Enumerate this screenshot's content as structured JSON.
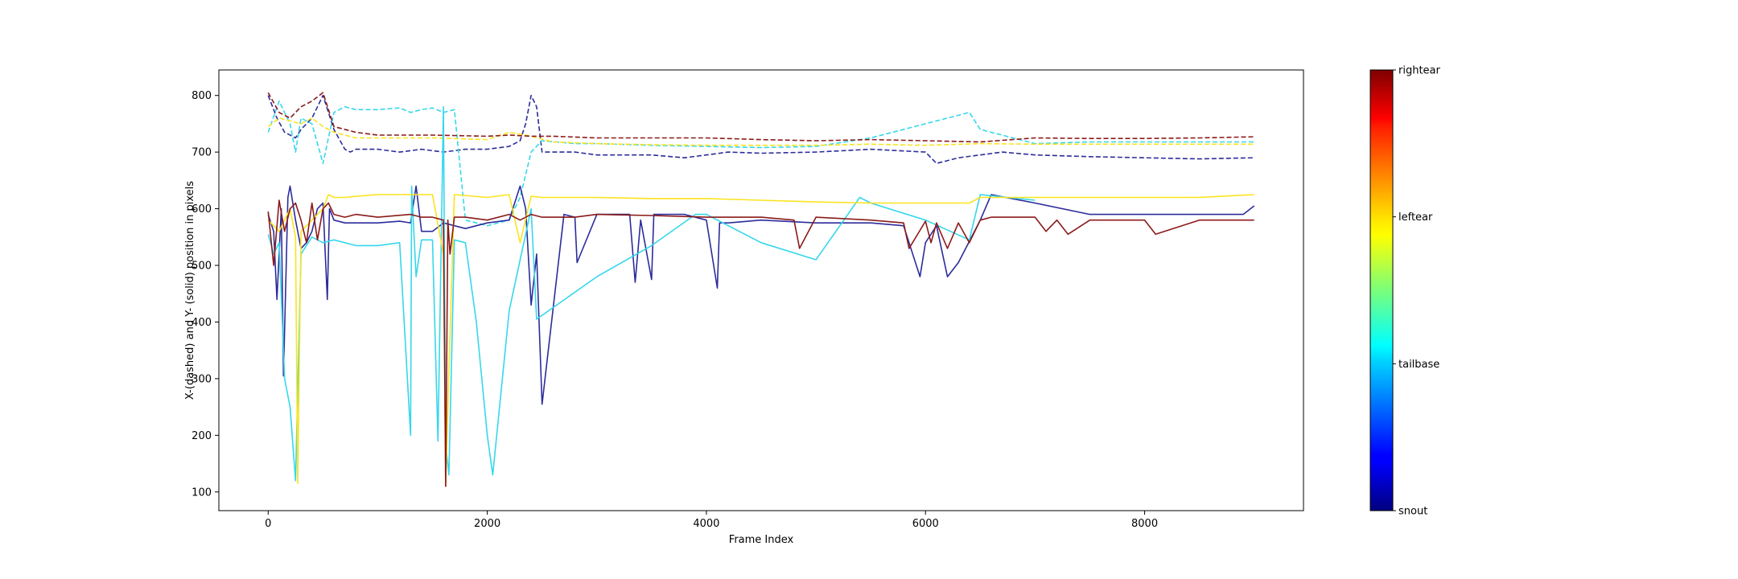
{
  "chart_data": {
    "type": "line",
    "title": "",
    "xlabel": "Frame Index",
    "ylabel": "X-(dashed) and Y- (solid) position in pixels",
    "xlim": [
      -450,
      9450
    ],
    "ylim": [
      67,
      845
    ],
    "xticks": [
      0,
      2000,
      4000,
      6000,
      8000
    ],
    "yticks": [
      100,
      200,
      300,
      400,
      500,
      600,
      700,
      800
    ],
    "grid": false,
    "legend": "none",
    "colorbar": {
      "labels": [
        "snout",
        "tailbase",
        "leftear",
        "rightear"
      ],
      "colormap": "jet"
    },
    "series": [
      {
        "color": "#2c2c9c",
        "dash": true,
        "x": [
          0,
          80,
          150,
          250,
          300,
          400,
          500,
          600,
          700,
          750,
          800,
          1000,
          1200,
          1400,
          1600,
          1800,
          2000,
          2200,
          2300,
          2350,
          2400,
          2450,
          2500,
          2800,
          3000,
          3200,
          3500,
          3800,
          4000,
          4200,
          4500,
          5000,
          5500,
          6000,
          6100,
          6300,
          6500,
          6700,
          7000,
          7500,
          8000,
          8500,
          9000
        ],
        "y": [
          800,
          760,
          735,
          725,
          740,
          760,
          800,
          740,
          705,
          700,
          705,
          705,
          700,
          705,
          700,
          705,
          705,
          710,
          720,
          750,
          800,
          780,
          700,
          700,
          695,
          695,
          695,
          690,
          695,
          700,
          698,
          700,
          705,
          700,
          680,
          690,
          695,
          700,
          695,
          692,
          690,
          688,
          690
        ]
      },
      {
        "color": "#36d7eb",
        "dash": true,
        "x": [
          0,
          100,
          200,
          250,
          300,
          400,
          500,
          600,
          700,
          800,
          1000,
          1200,
          1300,
          1400,
          1500,
          1600,
          1700,
          1800,
          2000,
          2200,
          2300,
          2400,
          2500,
          2800,
          3000,
          3500,
          4000,
          4500,
          5000,
          5500,
          6000,
          6400,
          6500,
          7000,
          7500,
          8000,
          8500,
          9000
        ],
        "y": [
          735,
          790,
          750,
          700,
          760,
          750,
          680,
          770,
          780,
          775,
          775,
          778,
          770,
          775,
          778,
          770,
          775,
          580,
          570,
          580,
          620,
          700,
          720,
          715,
          715,
          712,
          710,
          708,
          710,
          725,
          750,
          770,
          740,
          715,
          718,
          718,
          718,
          718
        ]
      },
      {
        "color": "#fce31e",
        "dash": true,
        "x": [
          0,
          100,
          200,
          300,
          400,
          500,
          600,
          800,
          1000,
          1500,
          2000,
          2200,
          2400,
          2600,
          3000,
          3500,
          4000,
          4500,
          5000,
          5500,
          6000,
          6500,
          7000,
          7500,
          8000,
          8500,
          9000
        ],
        "y": [
          745,
          760,
          755,
          750,
          760,
          745,
          735,
          725,
          725,
          725,
          722,
          735,
          728,
          718,
          715,
          713,
          712,
          712,
          712,
          714,
          712,
          715,
          714,
          714,
          714,
          714,
          714
        ]
      },
      {
        "color": "#8b1a1a",
        "dash": true,
        "x": [
          0,
          100,
          200,
          300,
          400,
          500,
          600,
          800,
          1000,
          1500,
          2000,
          2200,
          2400,
          2600,
          3000,
          3500,
          4000,
          4500,
          5000,
          5500,
          6000,
          6500,
          7000,
          7500,
          8000,
          8500,
          9000
        ],
        "y": [
          805,
          770,
          760,
          780,
          790,
          805,
          745,
          735,
          730,
          730,
          728,
          730,
          728,
          728,
          725,
          725,
          725,
          722,
          720,
          722,
          720,
          718,
          725,
          724,
          724,
          725,
          727
        ]
      },
      {
        "color": "#2c2c9c",
        "dash": false,
        "x": [
          0,
          50,
          80,
          120,
          140,
          180,
          200,
          250,
          300,
          350,
          400,
          450,
          500,
          540,
          560,
          600,
          700,
          800,
          1000,
          1200,
          1300,
          1350,
          1400,
          1500,
          1600,
          1800,
          2000,
          2200,
          2300,
          2350,
          2400,
          2450,
          2500,
          2700,
          2800,
          2820,
          3000,
          3300,
          3350,
          3400,
          3500,
          3520,
          3800,
          4000,
          4100,
          4120,
          4200,
          4500,
          5000,
          5500,
          5800,
          5950,
          6000,
          6100,
          6200,
          6300,
          6500,
          6600,
          7000,
          7500,
          8000,
          8500,
          8900,
          9000
        ],
        "y": [
          590,
          560,
          440,
          600,
          305,
          620,
          640,
          580,
          530,
          540,
          560,
          600,
          610,
          440,
          600,
          580,
          575,
          575,
          575,
          578,
          575,
          640,
          560,
          560,
          575,
          565,
          575,
          580,
          640,
          600,
          430,
          520,
          255,
          590,
          585,
          505,
          590,
          590,
          470,
          580,
          475,
          590,
          590,
          580,
          460,
          575,
          575,
          580,
          575,
          575,
          570,
          480,
          540,
          570,
          480,
          505,
          580,
          625,
          610,
          590,
          590,
          590,
          590,
          605
        ]
      },
      {
        "color": "#36d7eb",
        "dash": false,
        "x": [
          0,
          50,
          100,
          150,
          200,
          250,
          300,
          400,
          500,
          600,
          700,
          800,
          1000,
          1200,
          1300,
          1310,
          1350,
          1400,
          1500,
          1550,
          1600,
          1620,
          1650,
          1700,
          1800,
          1900,
          2000,
          2050,
          2200,
          2400,
          2450,
          3000,
          3500,
          3900,
          4000,
          4500,
          5000,
          5400,
          5500,
          6000,
          6400,
          6500,
          7000
        ],
        "y": [
          555,
          520,
          540,
          300,
          250,
          120,
          520,
          550,
          540,
          545,
          540,
          535,
          535,
          540,
          200,
          640,
          480,
          545,
          545,
          190,
          780,
          185,
          130,
          545,
          540,
          400,
          200,
          130,
          420,
          600,
          405,
          480,
          535,
          590,
          590,
          540,
          510,
          620,
          610,
          580,
          545,
          625,
          615
        ]
      },
      {
        "color": "#fce31e",
        "dash": false,
        "x": [
          0,
          100,
          200,
          250,
          270,
          300,
          400,
          500,
          550,
          600,
          700,
          800,
          1000,
          1500,
          1600,
          1620,
          1650,
          1700,
          2000,
          2200,
          2300,
          2400,
          2500,
          3000,
          3500,
          4000,
          4500,
          5000,
          5500,
          6000,
          6400,
          6500,
          7000,
          7500,
          8000,
          8500,
          9000
        ],
        "y": [
          580,
          560,
          600,
          550,
          115,
          560,
          580,
          600,
          625,
          620,
          620,
          622,
          625,
          625,
          520,
          110,
          315,
          625,
          620,
          625,
          540,
          622,
          620,
          620,
          618,
          618,
          615,
          612,
          610,
          610,
          610,
          620,
          620,
          620,
          620,
          620,
          625
        ]
      },
      {
        "color": "#8b1a1a",
        "dash": false,
        "x": [
          0,
          50,
          100,
          150,
          200,
          250,
          300,
          350,
          400,
          450,
          500,
          550,
          600,
          700,
          800,
          1000,
          1300,
          1400,
          1500,
          1600,
          1620,
          1640,
          1660,
          1700,
          1800,
          2000,
          2200,
          2300,
          2400,
          2500,
          2800,
          3000,
          3500,
          4000,
          4500,
          4800,
          4850,
          5000,
          5500,
          5800,
          5850,
          6000,
          6050,
          6100,
          6200,
          6300,
          6400,
          6500,
          6600,
          7000,
          7100,
          7200,
          7300,
          7500,
          8000,
          8100,
          8500,
          9000
        ],
        "y": [
          595,
          500,
          615,
          560,
          600,
          610,
          580,
          540,
          610,
          545,
          600,
          610,
          590,
          585,
          590,
          585,
          590,
          585,
          585,
          580,
          110,
          580,
          520,
          585,
          585,
          580,
          590,
          580,
          590,
          585,
          585,
          590,
          588,
          585,
          585,
          580,
          530,
          585,
          580,
          575,
          530,
          578,
          540,
          575,
          530,
          575,
          540,
          580,
          585,
          585,
          560,
          580,
          555,
          580,
          580,
          555,
          580,
          580
        ]
      }
    ]
  }
}
